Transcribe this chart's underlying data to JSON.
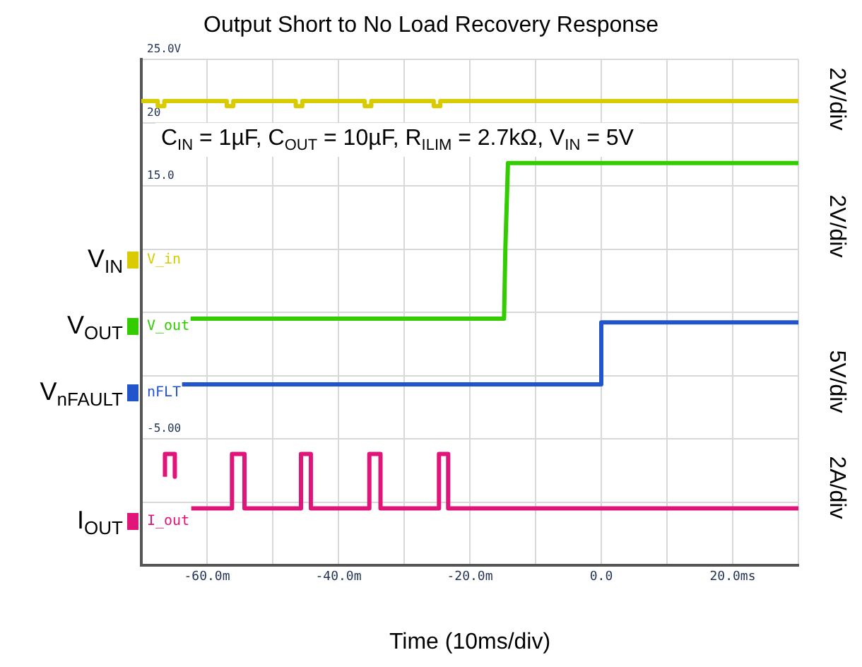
{
  "chart_data": {
    "type": "line",
    "title": "Output Short to No Load Recovery Response",
    "xlabel": "Time (10ms/div)",
    "xlim": [
      -70,
      30
    ],
    "xticks": [
      {
        "value": -70,
        "label": null
      },
      {
        "value": -60,
        "label": "-60.0m"
      },
      {
        "value": -50,
        "label": null
      },
      {
        "value": -40,
        "label": "-40.0m"
      },
      {
        "value": -30,
        "label": null
      },
      {
        "value": -20,
        "label": "-20.0m"
      },
      {
        "value": -10,
        "label": null
      },
      {
        "value": 0,
        "label": "0.0"
      },
      {
        "value": 10,
        "label": null
      },
      {
        "value": 20,
        "label": "20.0ms"
      },
      {
        "value": 30,
        "label": null
      }
    ],
    "ylim": [
      -15,
      25
    ],
    "yticks": [
      {
        "value": -15,
        "label": null
      },
      {
        "value": -10,
        "label": null
      },
      {
        "value": -5,
        "label": "-5.00"
      },
      {
        "value": 0,
        "label": null
      },
      {
        "value": 5,
        "label": null
      },
      {
        "value": 10,
        "label": null
      },
      {
        "value": 15,
        "label": "15.0"
      },
      {
        "value": 20,
        "label": "20"
      },
      {
        "value": 25,
        "label": "25.0V"
      }
    ],
    "grid": true,
    "legend": "left",
    "marker": "none",
    "line_style": "solid",
    "series": [
      {
        "name": "V$_{IN}$",
        "color": "#d8cc00",
        "x": [
          -70,
          -67.5,
          -67.5,
          -66.5,
          -66.5,
          -57,
          -57,
          -56,
          -56,
          -46.5,
          -46.5,
          -45.5,
          -45.5,
          -36,
          -36,
          -35,
          -35,
          -25.5,
          -25.5,
          -24.5,
          -24.5,
          30
        ],
        "values": [
          21.7,
          21.7,
          21.3,
          21.3,
          21.7,
          21.7,
          21.3,
          21.3,
          21.7,
          21.7,
          21.3,
          21.3,
          21.7,
          21.7,
          21.3,
          21.3,
          21.7,
          21.7,
          21.3,
          21.3,
          21.7,
          21.7
        ]
      },
      {
        "name": "V$_{OUT}$",
        "color": "#33cc00",
        "x": [
          -62.5,
          -14.8,
          -14.6,
          -14.2,
          30
        ],
        "values": [
          4.5,
          4.5,
          10,
          16.8,
          16.8
        ]
      },
      {
        "name": "V$_{nFAULT}$",
        "color": "#2255cc",
        "x": [
          -63.8,
          0,
          0,
          0,
          30
        ],
        "values": [
          -0.7,
          -0.7,
          1.3,
          4.2,
          4.2
        ]
      },
      {
        "name": "I$_{OUT}$",
        "color": "#e0157a",
        "x": [
          -66.4,
          -66.4,
          -64.9,
          -64.9,
          -63,
          -62.4,
          -56.2,
          -56.2,
          -54.3,
          -54.3,
          -45.7,
          -45.7,
          -44.2,
          -44.2,
          -35.3,
          -35.3,
          -33.6,
          -33.6,
          -24.7,
          -24.7,
          -23.3,
          -23.3,
          30
        ],
        "values": [
          -8,
          -6.2,
          -6.2,
          -8,
          null,
          -10.5,
          -10.5,
          -6.2,
          -6.2,
          -10.5,
          -10.5,
          -6.2,
          -6.2,
          -10.5,
          -10.5,
          -6.2,
          -6.2,
          -10.5,
          -10.5,
          -6.2,
          -6.2,
          -10.5,
          -10.5
        ]
      }
    ],
    "annotations": [
      "C$_{IN}$ = 1µF, C$_{OUT}$ = 10µF, R$_{ILIM}$ = 2.7kΩ, V$_{IN}$ = 5V",
      "V_in",
      "V_out",
      "nFLT",
      "I_out",
      "2V/div",
      "2V/div",
      "5V/div",
      "2A/div"
    ]
  }
}
